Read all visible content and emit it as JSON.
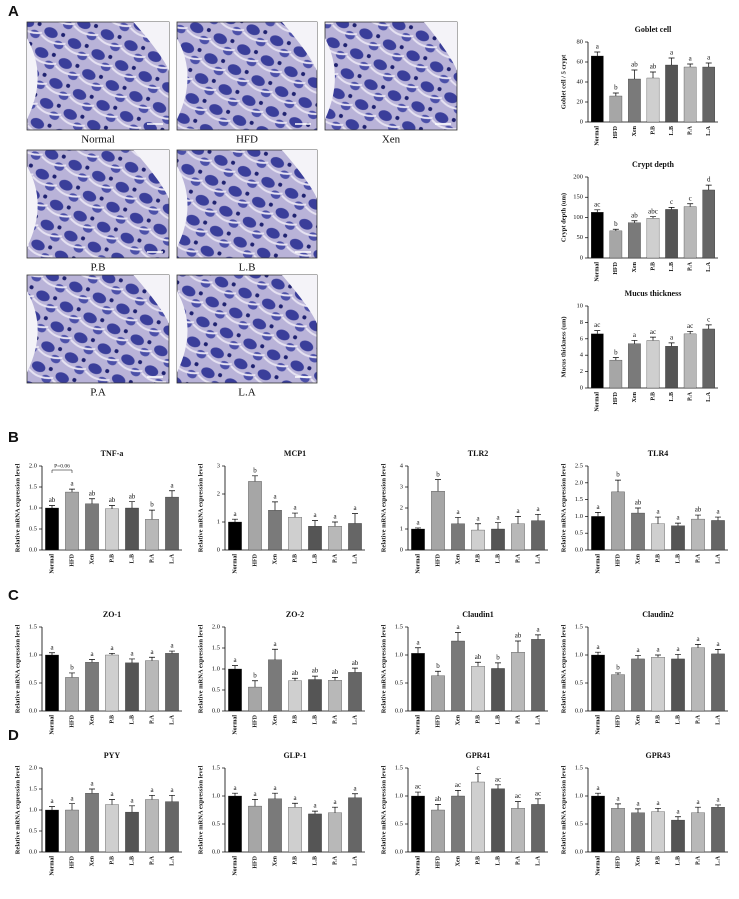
{
  "panel_labels": [
    "A",
    "B",
    "C",
    "D"
  ],
  "image_captions": [
    "Normal",
    "HFD",
    "Xen",
    "P.B",
    "L.B",
    "P.A",
    "L.A"
  ],
  "chart_data": [
    {
      "type": "bar",
      "title": "Goblet cell",
      "ylabel": "Goblet cell / 5 crypt",
      "categories": [
        "Normal",
        "HFD",
        "Xen",
        "P.B",
        "L.B",
        "P.A",
        "L.A"
      ],
      "colors": [
        "#000000",
        "#a6a6a6",
        "#7a7a7a",
        "#cfcfcf",
        "#555555",
        "#b8b8b8",
        "#666666"
      ],
      "values": [
        66,
        26,
        43,
        44,
        57,
        55,
        55
      ],
      "errors": [
        4,
        3,
        9,
        6,
        7,
        3,
        4
      ],
      "annotations": [
        "a",
        "b",
        "ab",
        "ab",
        "a",
        "a",
        "a"
      ],
      "ylim": [
        0,
        80
      ],
      "yticks": [
        0,
        20,
        40,
        60,
        80
      ]
    },
    {
      "type": "bar",
      "title": "Crypt depth",
      "ylabel": "Crypt depth (um)",
      "categories": [
        "Normal",
        "HFD",
        "Xen",
        "P.B",
        "L.B",
        "P.A",
        "L.A"
      ],
      "colors": [
        "#000000",
        "#a6a6a6",
        "#7a7a7a",
        "#cfcfcf",
        "#555555",
        "#b8b8b8",
        "#666666"
      ],
      "values": [
        113,
        67,
        87,
        98,
        120,
        127,
        168
      ],
      "errors": [
        6,
        4,
        5,
        4,
        5,
        7,
        12
      ],
      "annotations": [
        "ac",
        "b",
        "ab",
        "abc",
        "c",
        "c",
        "d"
      ],
      "ylim": [
        0,
        200
      ],
      "yticks": [
        0,
        50,
        100,
        150,
        200
      ]
    },
    {
      "type": "bar",
      "title": "Mucus thickness",
      "ylabel": "Mucus thickness (um)",
      "categories": [
        "Normal",
        "HFD",
        "Xen",
        "P.B",
        "L.B",
        "P.A",
        "L.A"
      ],
      "colors": [
        "#000000",
        "#a6a6a6",
        "#7a7a7a",
        "#cfcfcf",
        "#555555",
        "#b8b8b8",
        "#666666"
      ],
      "values": [
        6.6,
        3.4,
        5.4,
        5.8,
        5.1,
        6.6,
        7.2
      ],
      "errors": [
        0.4,
        0.3,
        0.4,
        0.4,
        0.4,
        0.3,
        0.5
      ],
      "annotations": [
        "ac",
        "b",
        "a",
        "ac",
        "a",
        "ac",
        "c"
      ],
      "ylim": [
        0,
        10
      ],
      "yticks": [
        0,
        2,
        4,
        6,
        8,
        10
      ]
    },
    {
      "type": "bar",
      "title": "TNF-a",
      "ylabel": "Relative mRNA expression level",
      "note": "P=0.06",
      "categories": [
        "Normal",
        "HFD",
        "Xen",
        "P.B",
        "L.B",
        "P.A",
        "L.A"
      ],
      "colors": [
        "#000000",
        "#a6a6a6",
        "#7a7a7a",
        "#cfcfcf",
        "#555555",
        "#b8b8b8",
        "#666666"
      ],
      "values": [
        1.0,
        1.38,
        1.1,
        0.98,
        1.0,
        0.73,
        1.26
      ],
      "errors": [
        0.06,
        0.07,
        0.12,
        0.08,
        0.15,
        0.22,
        0.15
      ],
      "annotations": [
        "ab",
        "a",
        "ab",
        "ab",
        "ab",
        "b",
        "a"
      ],
      "ylim": [
        0,
        2
      ],
      "yticks": [
        {
          "value": 0,
          "label": "0.0"
        },
        0.5,
        {
          "value": 1,
          "label": "1.0"
        },
        1.5,
        {
          "value": 2,
          "label": "2.0"
        }
      ]
    },
    {
      "type": "bar",
      "title": "MCP1",
      "ylabel": "Relative mRNA expression level",
      "categories": [
        "Normal",
        "HFD",
        "Xen",
        "P.B",
        "L.B",
        "P.A",
        "L.A"
      ],
      "colors": [
        "#000000",
        "#a6a6a6",
        "#7a7a7a",
        "#cfcfcf",
        "#555555",
        "#b8b8b8",
        "#666666"
      ],
      "values": [
        1.0,
        2.45,
        1.42,
        1.17,
        0.85,
        0.85,
        0.95
      ],
      "errors": [
        0.1,
        0.2,
        0.3,
        0.15,
        0.2,
        0.15,
        0.35
      ],
      "annotations": [
        "a",
        "b",
        "a",
        "a",
        "a",
        "a",
        "a"
      ],
      "ylim": [
        0,
        3
      ],
      "yticks": [
        0,
        1,
        2,
        3
      ]
    },
    {
      "type": "bar",
      "title": "TLR2",
      "ylabel": "Relative mRNA expression level",
      "categories": [
        "Normal",
        "HFD",
        "Xen",
        "P.B",
        "L.B",
        "P.A",
        "L.A"
      ],
      "colors": [
        "#000000",
        "#a6a6a6",
        "#7a7a7a",
        "#cfcfcf",
        "#555555",
        "#b8b8b8",
        "#666666"
      ],
      "values": [
        1.0,
        2.8,
        1.25,
        0.95,
        1.0,
        1.25,
        1.4
      ],
      "errors": [
        0.05,
        0.55,
        0.3,
        0.3,
        0.3,
        0.35,
        0.3
      ],
      "annotations": [
        "a",
        "b",
        "a",
        "a",
        "a",
        "a",
        "a"
      ],
      "ylim": [
        0,
        4
      ],
      "yticks": [
        0,
        1,
        2,
        3,
        4
      ]
    },
    {
      "type": "bar",
      "title": "TLR4",
      "ylabel": "Relative mRNA expression level",
      "categories": [
        "Normal",
        "HFD",
        "Xen",
        "P.B",
        "L.B",
        "P.A",
        "L.A"
      ],
      "colors": [
        "#000000",
        "#a6a6a6",
        "#7a7a7a",
        "#cfcfcf",
        "#555555",
        "#b8b8b8",
        "#666666"
      ],
      "values": [
        1.0,
        1.73,
        1.1,
        0.78,
        0.72,
        0.92,
        0.88
      ],
      "errors": [
        0.12,
        0.35,
        0.15,
        0.2,
        0.08,
        0.12,
        0.1
      ],
      "annotations": [
        "a",
        "b",
        "ab",
        "a",
        "a",
        "ab",
        "a"
      ],
      "ylim": [
        0,
        2.5
      ],
      "yticks": [
        {
          "value": 0,
          "label": "0.0"
        },
        0.5,
        {
          "value": 1,
          "label": "1.0"
        },
        1.5,
        {
          "value": 2,
          "label": "2.0"
        },
        2.5
      ]
    },
    {
      "type": "bar",
      "title": "ZO-1",
      "ylabel": "Relative mRNA expression level",
      "categories": [
        "Normal",
        "HFD",
        "Xen",
        "P.B",
        "L.B",
        "P.A",
        "L.A"
      ],
      "colors": [
        "#000000",
        "#a6a6a6",
        "#7a7a7a",
        "#cfcfcf",
        "#555555",
        "#b8b8b8",
        "#666666"
      ],
      "values": [
        1.0,
        0.6,
        0.87,
        1.0,
        0.86,
        0.9,
        1.03
      ],
      "errors": [
        0.04,
        0.08,
        0.05,
        0.03,
        0.07,
        0.06,
        0.04
      ],
      "annotations": [
        "a",
        "b",
        "a",
        "a",
        "a",
        "a",
        "a"
      ],
      "ylim": [
        0,
        1.5
      ],
      "yticks": [
        {
          "value": 0,
          "label": "0.0"
        },
        0.5,
        {
          "value": 1,
          "label": "1.0"
        },
        1.5
      ]
    },
    {
      "type": "bar",
      "title": "ZO-2",
      "ylabel": "Relative mRNA expression level",
      "categories": [
        "Normal",
        "HFD",
        "Xen",
        "P.B",
        "L.B",
        "P.A",
        "L.A"
      ],
      "colors": [
        "#000000",
        "#a6a6a6",
        "#7a7a7a",
        "#cfcfcf",
        "#555555",
        "#b8b8b8",
        "#666666"
      ],
      "values": [
        1.0,
        0.57,
        1.22,
        0.72,
        0.75,
        0.73,
        0.92
      ],
      "errors": [
        0.08,
        0.15,
        0.25,
        0.06,
        0.08,
        0.07,
        0.1
      ],
      "annotations": [
        "a",
        "b",
        "a",
        "ab",
        "ab",
        "ab",
        "ab"
      ],
      "ylim": [
        0,
        2
      ],
      "yticks": [
        {
          "value": 0,
          "label": "0.0"
        },
        0.5,
        {
          "value": 1,
          "label": "1.0"
        },
        1.5,
        {
          "value": 2,
          "label": "2.0"
        }
      ]
    },
    {
      "type": "bar",
      "title": "Claudin1",
      "ylabel": "Relative mRNA expression level",
      "categories": [
        "Normal",
        "HFD",
        "Xen",
        "P.B",
        "L.B",
        "P.A",
        "L.A"
      ],
      "colors": [
        "#000000",
        "#a6a6a6",
        "#7a7a7a",
        "#cfcfcf",
        "#555555",
        "#b8b8b8",
        "#666666"
      ],
      "values": [
        1.03,
        0.63,
        1.25,
        0.8,
        0.76,
        1.05,
        1.28
      ],
      "errors": [
        0.1,
        0.08,
        0.15,
        0.07,
        0.1,
        0.2,
        0.08
      ],
      "annotations": [
        "a",
        "b",
        "a",
        "ab",
        "b",
        "ab",
        "a"
      ],
      "ylim": [
        0,
        1.5
      ],
      "yticks": [
        {
          "value": 0,
          "label": "0.0"
        },
        0.5,
        {
          "value": 1,
          "label": "1.0"
        },
        1.5
      ]
    },
    {
      "type": "bar",
      "title": "Claudin2",
      "ylabel": "Relative mRNA expression level",
      "categories": [
        "Normal",
        "HFD",
        "Xen",
        "P.B",
        "L.B",
        "P.A",
        "L.A"
      ],
      "colors": [
        "#000000",
        "#a6a6a6",
        "#7a7a7a",
        "#cfcfcf",
        "#555555",
        "#b8b8b8",
        "#666666"
      ],
      "values": [
        1.0,
        0.65,
        0.93,
        0.96,
        0.93,
        1.13,
        1.02
      ],
      "errors": [
        0.05,
        0.03,
        0.06,
        0.04,
        0.08,
        0.06,
        0.08
      ],
      "annotations": [
        "a",
        "b",
        "a",
        "a",
        "a",
        "a",
        "a"
      ],
      "ylim": [
        0,
        1.5
      ],
      "yticks": [
        {
          "value": 0,
          "label": "0.0"
        },
        0.5,
        {
          "value": 1,
          "label": "1.0"
        },
        1.5
      ]
    },
    {
      "type": "bar",
      "title": "PYY",
      "ylabel": "Relative mRNA expression level",
      "categories": [
        "Normal",
        "HFD",
        "Xen",
        "P.B",
        "L.B",
        "P.A",
        "L.A"
      ],
      "colors": [
        "#000000",
        "#a6a6a6",
        "#7a7a7a",
        "#cfcfcf",
        "#555555",
        "#b8b8b8",
        "#666666"
      ],
      "values": [
        1.0,
        1.0,
        1.4,
        1.13,
        0.95,
        1.25,
        1.2
      ],
      "errors": [
        0.08,
        0.15,
        0.1,
        0.12,
        0.15,
        0.1,
        0.15
      ],
      "annotations": [
        "a",
        "a",
        "a",
        "a",
        "a",
        "a",
        "a"
      ],
      "ylim": [
        0,
        2
      ],
      "yticks": [
        {
          "value": 0,
          "label": "0.0"
        },
        0.5,
        {
          "value": 1,
          "label": "1.0"
        },
        1.5,
        {
          "value": 2,
          "label": "2.0"
        }
      ]
    },
    {
      "type": "bar",
      "title": "GLP-1",
      "ylabel": "Relative mRNA expression level",
      "categories": [
        "Normal",
        "HFD",
        "Xen",
        "P.B",
        "L.B",
        "P.A",
        "L.A"
      ],
      "colors": [
        "#000000",
        "#a6a6a6",
        "#7a7a7a",
        "#cfcfcf",
        "#555555",
        "#b8b8b8",
        "#666666"
      ],
      "values": [
        1.0,
        0.82,
        0.95,
        0.8,
        0.68,
        0.7,
        0.97
      ],
      "errors": [
        0.05,
        0.12,
        0.1,
        0.07,
        0.05,
        0.1,
        0.07
      ],
      "annotations": [
        "a",
        "a",
        "a",
        "a",
        "a",
        "a",
        "a"
      ],
      "ylim": [
        0,
        1.5
      ],
      "yticks": [
        {
          "value": 0,
          "label": "0.0"
        },
        0.5,
        {
          "value": 1,
          "label": "1.0"
        },
        1.5
      ]
    },
    {
      "type": "bar",
      "title": "GPR41",
      "ylabel": "Relative mRNA expression level",
      "categories": [
        "Normal",
        "HFD",
        "Xen",
        "P.B",
        "L.B",
        "P.A",
        "L.A"
      ],
      "colors": [
        "#000000",
        "#a6a6a6",
        "#7a7a7a",
        "#cfcfcf",
        "#555555",
        "#b8b8b8",
        "#666666"
      ],
      "values": [
        1.0,
        0.75,
        1.0,
        1.25,
        1.13,
        0.78,
        0.85
      ],
      "errors": [
        0.07,
        0.1,
        0.1,
        0.15,
        0.07,
        0.12,
        0.1
      ],
      "annotations": [
        "ac",
        "ab",
        "ac",
        "c",
        "ac",
        "ac",
        "ac"
      ],
      "ylim": [
        0,
        1.5
      ],
      "yticks": [
        {
          "value": 0,
          "label": "0.0"
        },
        0.5,
        {
          "value": 1,
          "label": "1.0"
        },
        1.5
      ]
    },
    {
      "type": "bar",
      "title": "GPR43",
      "ylabel": "Relative mRNA expression level",
      "categories": [
        "Normal",
        "HFD",
        "Xen",
        "P.B",
        "L.B",
        "P.A",
        "L.A"
      ],
      "colors": [
        "#000000",
        "#a6a6a6",
        "#7a7a7a",
        "#cfcfcf",
        "#555555",
        "#b8b8b8",
        "#666666"
      ],
      "values": [
        1.0,
        0.78,
        0.7,
        0.72,
        0.57,
        0.7,
        0.8
      ],
      "errors": [
        0.05,
        0.08,
        0.07,
        0.06,
        0.06,
        0.1,
        0.04
      ],
      "annotations": [
        "a",
        "a",
        "a",
        "a",
        "a",
        "a",
        "a"
      ],
      "ylim": [
        0,
        1.5
      ],
      "yticks": [
        {
          "value": 0,
          "label": "0.0"
        },
        0.5,
        {
          "value": 1,
          "label": "1.0"
        },
        1.5
      ]
    }
  ]
}
